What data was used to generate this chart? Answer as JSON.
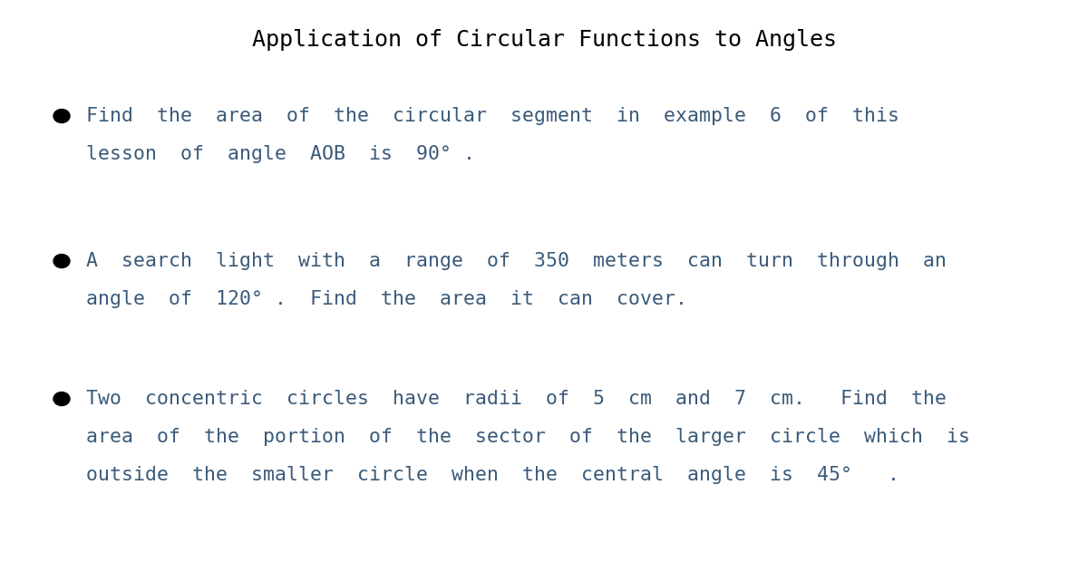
{
  "title": "Application of Circular Functions to Angles",
  "title_color": "#000000",
  "title_fontsize": 18,
  "title_font": "DejaVu Sans Mono",
  "background_color": "#ffffff",
  "bullet_color": "#000000",
  "text_color": "#3a5a7a",
  "bullet_items": [
    {
      "lines": [
        "Find  the  area  of  the  circular  segment  in  example  6  of  this",
        "lesson  of  angle  AOB  is  90° ."
      ]
    },
    {
      "lines": [
        "A  search  light  with  a  range  of  350  meters  can  turn  through  an",
        "angle  of  120° .  Find  the  area  it  can  cover."
      ]
    },
    {
      "lines": [
        "Two  concentric  circles  have  radii  of  5  cm  and  7  cm.   Find  the",
        "area  of  the  portion  of  the  sector  of  the  larger  circle  which  is",
        "outside  the  smaller  circle  when  the  central  angle  is  45°   ."
      ]
    }
  ],
  "font_size": 15.5,
  "font_family": "DejaVu Sans Mono",
  "figsize": [
    12.0,
    6.31
  ],
  "dpi": 100
}
